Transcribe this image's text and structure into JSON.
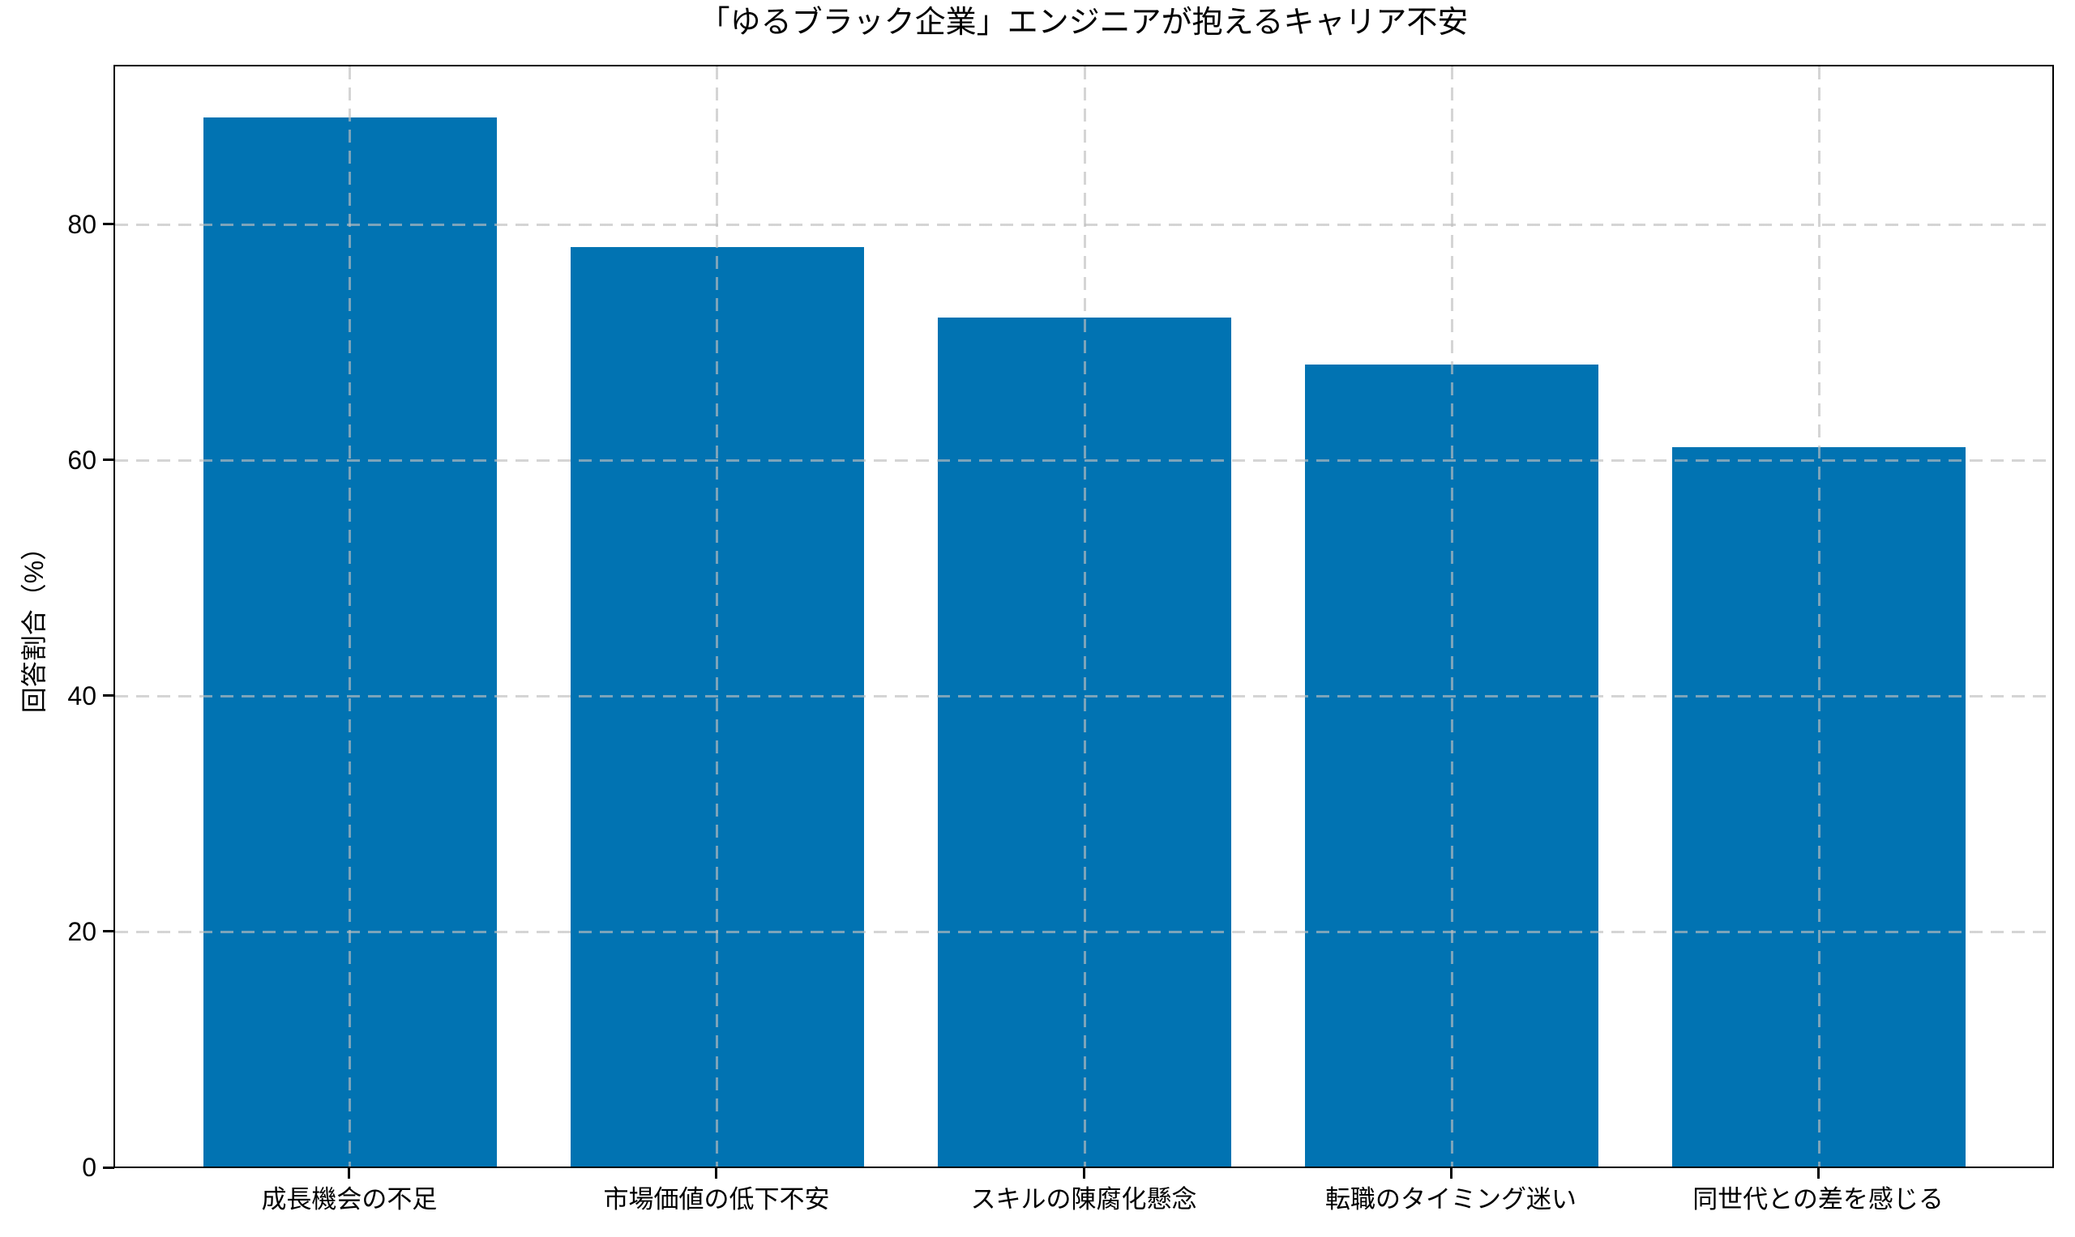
{
  "chart_data": {
    "type": "bar",
    "title": "「ゆるブラック企業」エンジニアが抱えるキャリア不安",
    "ylabel": "回答割合（%）",
    "xlabel": "",
    "categories": [
      "成長機会の不足",
      "市場価値の低下不安",
      "スキルの陳腐化懸念",
      "転職のタイミング迷い",
      "同世代との差を感じる"
    ],
    "values": [
      89,
      78,
      72,
      68,
      61
    ],
    "y_ticks": [
      0,
      20,
      40,
      60,
      80
    ],
    "ylim": [
      0,
      93.45
    ],
    "bar_color": "#0173b2",
    "grid": "dashed-both-axes-over-bars",
    "legend": "none",
    "tick_color": "#000000",
    "spine_color": "#000000",
    "background_color": "#ffffff"
  }
}
